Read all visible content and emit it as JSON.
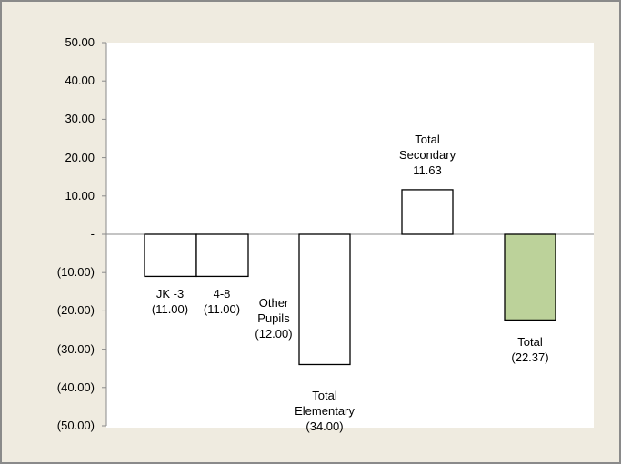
{
  "chart_data": {
    "type": "bar",
    "style": "waterfall",
    "categories": [
      {
        "name": "JK -3",
        "lines": [
          "JK -3"
        ],
        "value": -11.0,
        "value_label": "(11.00)"
      },
      {
        "name": "4-8",
        "lines": [
          "4-8"
        ],
        "value": -11.0,
        "value_label": "(11.00)"
      },
      {
        "name": "Other Pupils",
        "lines": [
          "Other",
          "Pupils"
        ],
        "value": -12.0,
        "value_label": "(12.00)"
      },
      {
        "name": "Total Elementary",
        "lines": [
          "Total",
          "Elementary"
        ],
        "value": -34.0,
        "value_label": "(34.00)"
      },
      {
        "name": "Total Secondary",
        "lines": [
          "Total",
          "Secondary"
        ],
        "value": 11.63,
        "value_label": "11.63"
      },
      {
        "name": "Total",
        "lines": [
          "Total"
        ],
        "value": -22.37,
        "value_label": "(22.37)"
      }
    ],
    "ylim": [
      -50,
      50
    ],
    "yticks": [
      50,
      40,
      30,
      20,
      10,
      0,
      -10,
      -20,
      -30,
      -40,
      -50
    ],
    "ytick_labels": [
      "50.00",
      "40.00",
      "30.00",
      "20.00",
      "10.00",
      "-",
      "(10.00)",
      "(20.00)",
      "(30.00)",
      "(40.00)",
      "(50.00)"
    ],
    "title": "",
    "xlabel": "",
    "ylabel": "",
    "grid": false,
    "colors": {
      "bar_fill": "#ffffff",
      "total_fill": "#bcd29a",
      "bar_stroke": "#000000",
      "axis": "#8a8a8a",
      "background": "#efebe0"
    }
  }
}
